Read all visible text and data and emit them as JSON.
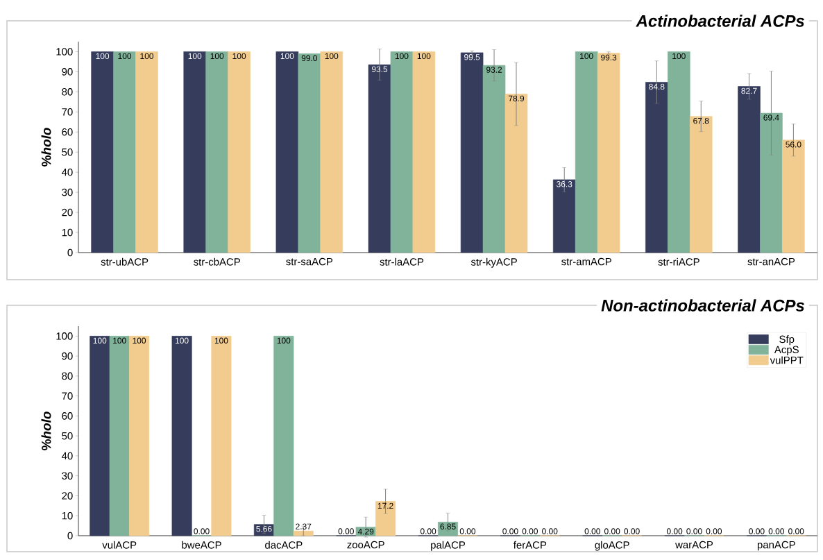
{
  "chart_data": [
    {
      "type": "bar",
      "title": "Actinobacterial ACPs",
      "ylabel": "%*holo*",
      "categories": [
        "str-ubACP",
        "str-cbACP",
        "str-saACP",
        "str-laACP",
        "str-kyACP",
        "str-amACP",
        "str-riACP",
        "str-anACP"
      ],
      "series": [
        {
          "color": "#363d5c",
          "values": [
            100,
            100,
            100,
            93.5,
            99.5,
            36.3,
            84.8,
            82.7
          ],
          "value_labels": [
            "100",
            "100",
            "100",
            "93.5",
            "99.5",
            "36.3",
            "84.8",
            "82.7"
          ],
          "errors": [
            null,
            null,
            null,
            7.8,
            0.9,
            6.0,
            10.6,
            6.4
          ]
        },
        {
          "color": "#80b39a",
          "values": [
            100,
            100,
            99.0,
            100,
            93.2,
            100,
            100,
            69.4
          ],
          "value_labels": [
            "100",
            "100",
            "99.0",
            "100",
            "93.2",
            "100",
            "100",
            "69.4"
          ],
          "errors": [
            null,
            null,
            null,
            null,
            7.8,
            null,
            null,
            20.9
          ]
        },
        {
          "color": "#f2cc8f",
          "values": [
            100,
            100,
            100,
            100,
            78.9,
            99.3,
            67.8,
            56.0
          ],
          "value_labels": [
            "100",
            "100",
            "100",
            "100",
            "78.9",
            "99.3",
            "67.8",
            "56.0"
          ],
          "errors": [
            null,
            null,
            null,
            null,
            15.7,
            0.6,
            7.6,
            8.0
          ]
        }
      ],
      "ylim": [
        0,
        105
      ],
      "yticks": [
        0,
        10,
        20,
        30,
        40,
        50,
        60,
        70,
        80,
        90,
        100
      ],
      "grid": false
    },
    {
      "type": "bar",
      "title": "Non-actinobacterial ACPs",
      "ylabel": "%*holo*",
      "categories": [
        "vulACP",
        "bweACP",
        "dacACP",
        "zooACP",
        "palACP",
        "ferACP",
        "gloACP",
        "warACP",
        "panACP"
      ],
      "series": [
        {
          "name": "Sfp",
          "color": "#363d5c",
          "values": [
            100,
            100,
            5.66,
            0,
            0,
            0,
            0,
            0,
            0
          ],
          "value_labels": [
            "100",
            "100",
            "5.66",
            "0.00",
            "0.00",
            "0.00",
            "0.00",
            "0.00",
            "0.00"
          ],
          "errors": [
            null,
            null,
            4.6,
            null,
            null,
            null,
            null,
            null,
            null
          ]
        },
        {
          "name": "AcpS",
          "color": "#80b39a",
          "values": [
            100,
            0,
            100,
            4.29,
            6.85,
            0,
            0,
            0,
            0
          ],
          "value_labels": [
            "100",
            "0.00",
            "100",
            "4.29",
            "6.85",
            "0.00",
            "0.00",
            "0.00",
            "0.00"
          ],
          "errors": [
            null,
            null,
            null,
            5.0,
            4.5,
            null,
            null,
            null,
            null
          ]
        },
        {
          "name": "vulPPT",
          "color": "#f2cc8f",
          "values": [
            100,
            100,
            2.37,
            17.2,
            0,
            0,
            0,
            0,
            0
          ],
          "value_labels": [
            "100",
            "100",
            "2.37",
            "17.2",
            "0.00",
            "0.00",
            "0.00",
            "0.00",
            "0.00"
          ],
          "errors": [
            null,
            null,
            2.4,
            6.1,
            null,
            null,
            null,
            null,
            null
          ]
        }
      ],
      "ylim": [
        0,
        105
      ],
      "yticks": [
        0,
        10,
        20,
        30,
        40,
        50,
        60,
        70,
        80,
        90,
        100
      ],
      "grid": false,
      "legend": "top right"
    }
  ]
}
